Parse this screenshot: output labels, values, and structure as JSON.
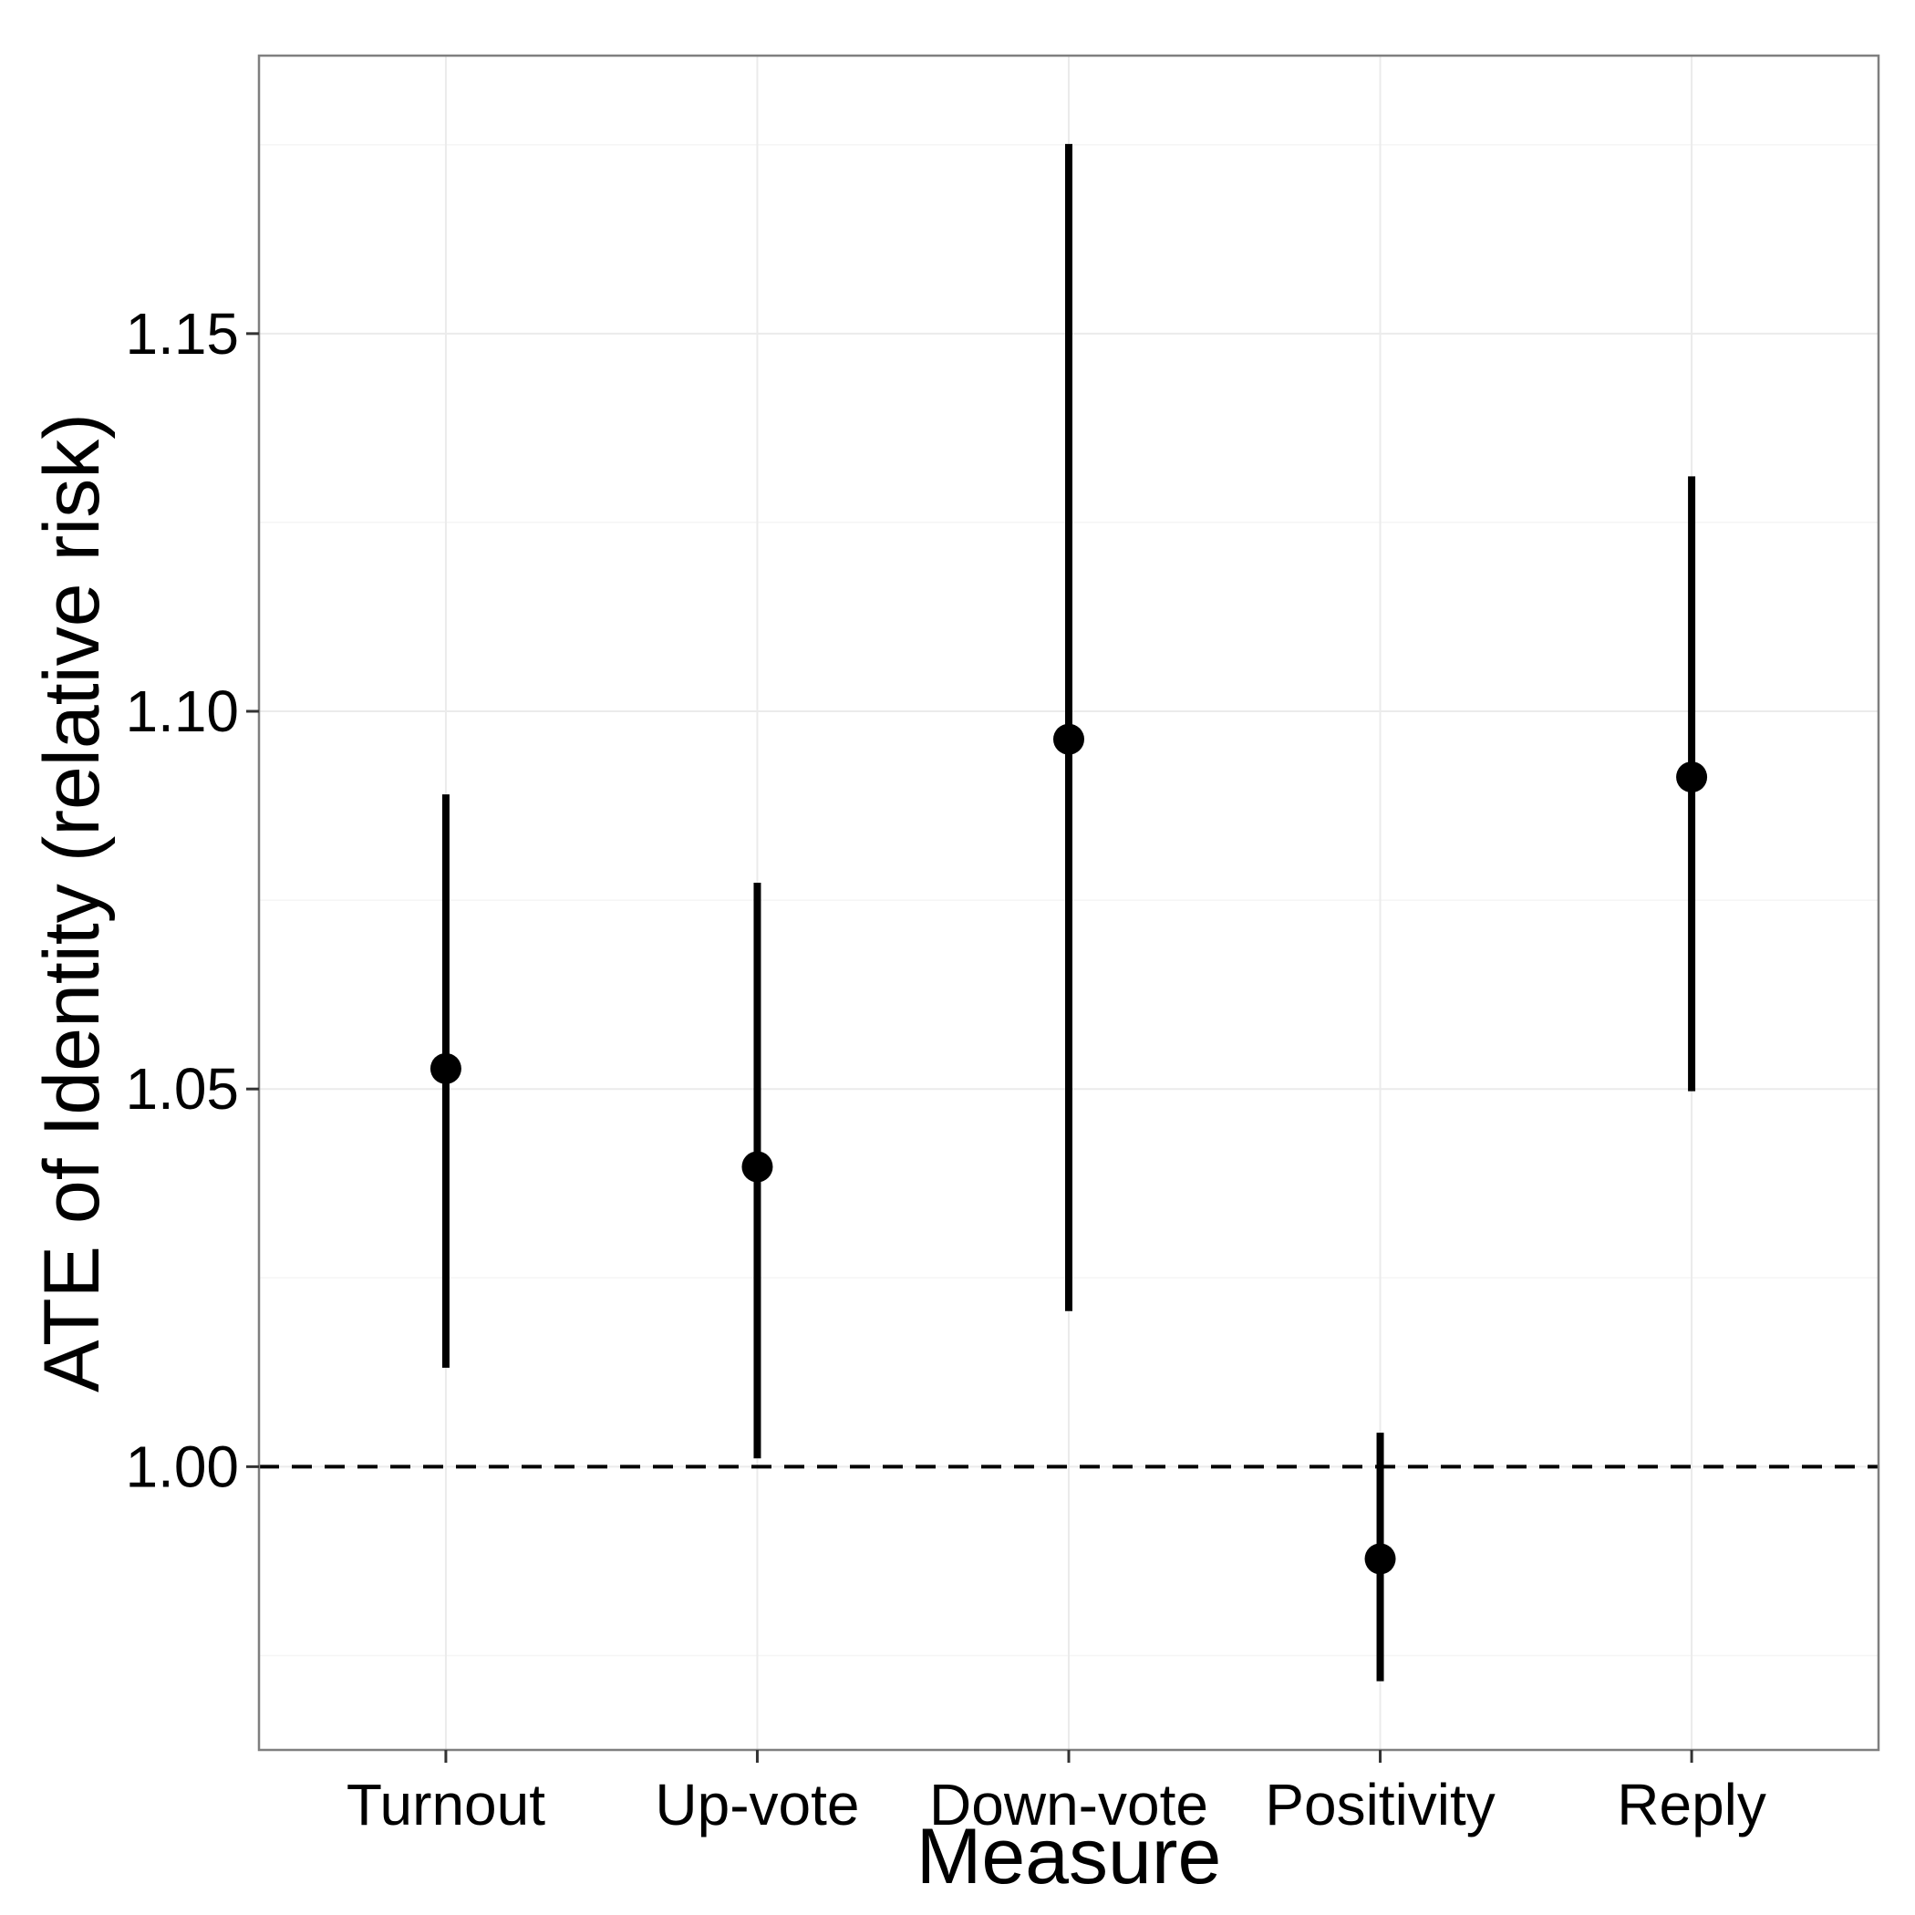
{
  "chart_data": {
    "type": "scatter",
    "subtype": "point-range",
    "title": "",
    "xlabel": "Measure",
    "ylabel": "ATE of Identity (relative risk)",
    "categories": [
      "Turnout",
      "Up-vote",
      "Down-vote",
      "Positivity",
      "Reply"
    ],
    "series": [
      {
        "estimate": [
          1.0527,
          1.0397,
          1.0963,
          0.9878,
          1.0913
        ],
        "lower": [
          1.0131,
          1.0011,
          1.0206,
          0.9716,
          1.0497
        ],
        "upper": [
          1.089,
          1.0773,
          1.1751,
          1.0045,
          1.1311
        ]
      }
    ],
    "ylim": [
      0.9625,
      1.1868
    ],
    "yticks": [
      1.0,
      1.05,
      1.1,
      1.15
    ],
    "ytick_labels": [
      "1.00",
      "1.05",
      "1.10",
      "1.15"
    ],
    "reference_line": {
      "y": 1.0,
      "style": "dashed"
    },
    "grid": true,
    "legend": "none",
    "colors": {
      "marks": "#000000",
      "grid": "#ebebeb",
      "panel_border": "#7f7f7f",
      "background": "#ffffff"
    }
  }
}
